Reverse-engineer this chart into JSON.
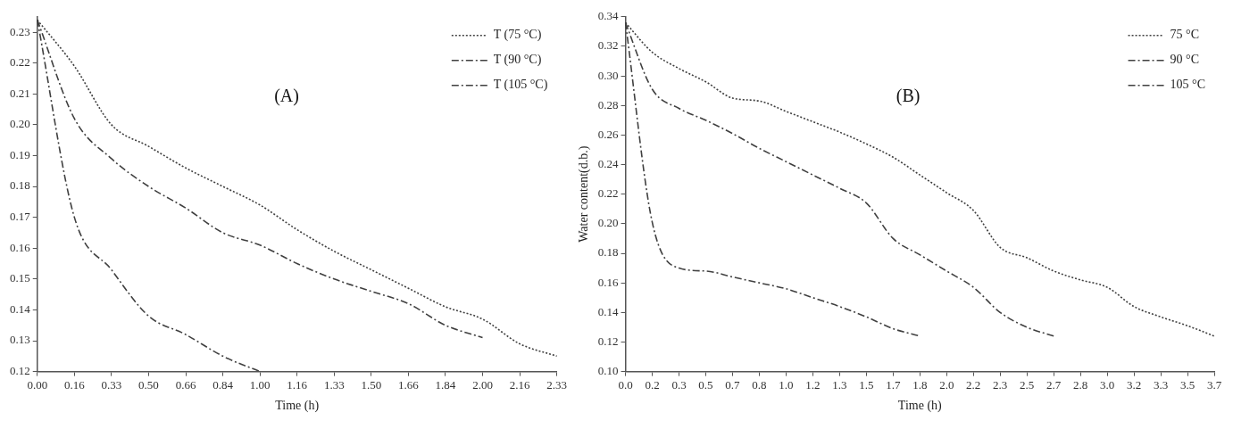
{
  "chart_data": [
    {
      "type": "line",
      "annotations": [
        "(A)"
      ],
      "xlabel": "Time (h)",
      "categories": [
        "0.00",
        "0.16",
        "0.33",
        "0.50",
        "0.66",
        "0.84",
        "1.00",
        "1.16",
        "1.33",
        "1.50",
        "1.66",
        "1.84",
        "2.00",
        "2.16",
        "2.33"
      ],
      "ylim": [
        0.12,
        0.235
      ],
      "yticks": [
        {
          "value": 0.12,
          "label": "0.12"
        },
        {
          "value": 0.13,
          "label": "0.13"
        },
        {
          "value": 0.14,
          "label": "0.14"
        },
        {
          "value": 0.15,
          "label": "0.15"
        },
        {
          "value": 0.16,
          "label": "0.16"
        },
        {
          "value": 0.17,
          "label": "0.17"
        },
        {
          "value": 0.18,
          "label": "0.18"
        },
        {
          "value": 0.19,
          "label": "0.19"
        },
        {
          "value": 0.2,
          "label": "0.20"
        },
        {
          "value": 0.21,
          "label": "0.21"
        },
        {
          "value": 0.22,
          "label": "0.22"
        },
        {
          "value": 0.23,
          "label": "0.23"
        }
      ],
      "grid": false,
      "legend": "top right",
      "series": [
        {
          "name": "T (75 °C)",
          "color": "#404040",
          "line_style": "dotted",
          "values": [
            0.234,
            0.219,
            0.2,
            0.193,
            0.186,
            0.18,
            0.174,
            0.166,
            0.159,
            0.153,
            0.147,
            0.141,
            0.137,
            0.129,
            0.125
          ]
        },
        {
          "name": "T (90 °C)",
          "color": "#404040",
          "line_style": "dashed",
          "values": [
            0.234,
            0.202,
            0.189,
            0.18,
            0.173,
            0.165,
            0.161,
            0.155,
            0.15,
            0.146,
            0.142,
            0.135,
            0.131,
            null,
            null
          ]
        },
        {
          "name": "T (105 °C)",
          "color": "#404040",
          "line_style": "dashed",
          "values": [
            0.234,
            0.17,
            0.153,
            0.138,
            0.132,
            0.125,
            0.12,
            null,
            null,
            null,
            null,
            null,
            null,
            null,
            null
          ]
        }
      ]
    },
    {
      "type": "line",
      "annotations": [
        "(B)"
      ],
      "xlabel": "Time (h)",
      "ylabel": "Water content(d.b.)",
      "categories": [
        "0.0",
        "0.2",
        "0.3",
        "0.5",
        "0.7",
        "0.8",
        "1.0",
        "1.2",
        "1.3",
        "1.5",
        "1.7",
        "1.8",
        "2.0",
        "2.2",
        "2.3",
        "2.5",
        "2.7",
        "2.8",
        "3.0",
        "3.2",
        "3.3",
        "3.5",
        "3.7"
      ],
      "ylim": [
        0.1,
        0.34
      ],
      "yticks": [
        {
          "value": 0.1,
          "label": "0.10"
        },
        {
          "value": 0.12,
          "label": "0.12"
        },
        {
          "value": 0.14,
          "label": "0.14"
        },
        {
          "value": 0.16,
          "label": "0.16"
        },
        {
          "value": 0.18,
          "label": "0.18"
        },
        {
          "value": 0.2,
          "label": "0.20"
        },
        {
          "value": 0.22,
          "label": "0.22"
        },
        {
          "value": 0.24,
          "label": "0.24"
        },
        {
          "value": 0.26,
          "label": "0.26"
        },
        {
          "value": 0.28,
          "label": "0.28"
        },
        {
          "value": 0.3,
          "label": "0.30"
        },
        {
          "value": 0.32,
          "label": "0.32"
        },
        {
          "value": 0.34,
          "label": "0.34"
        }
      ],
      "grid": false,
      "legend": "top right",
      "series": [
        {
          "name": "75 °C",
          "color": "#404040",
          "line_style": "dotted",
          "values": [
            0.336,
            0.316,
            0.305,
            0.296,
            0.285,
            0.283,
            0.276,
            0.269,
            0.262,
            0.254,
            0.245,
            0.233,
            0.221,
            0.209,
            0.184,
            0.177,
            0.168,
            0.162,
            0.157,
            0.144,
            0.137,
            0.131,
            0.124
          ]
        },
        {
          "name": "90 °C",
          "color": "#404040",
          "line_style": "dashed",
          "values": [
            0.336,
            0.291,
            0.278,
            0.27,
            0.261,
            0.251,
            0.242,
            0.233,
            0.224,
            0.214,
            0.19,
            0.179,
            0.168,
            0.157,
            0.14,
            0.13,
            0.124,
            null,
            null,
            null,
            null,
            null,
            null
          ]
        },
        {
          "name": "105 °C",
          "color": "#404040",
          "line_style": "dashed",
          "values": [
            0.336,
            0.201,
            0.17,
            0.168,
            0.164,
            0.16,
            0.156,
            0.15,
            0.144,
            0.137,
            0.129,
            0.124,
            null,
            null,
            null,
            null,
            null,
            null,
            null,
            null,
            null,
            null,
            null
          ]
        }
      ]
    }
  ]
}
